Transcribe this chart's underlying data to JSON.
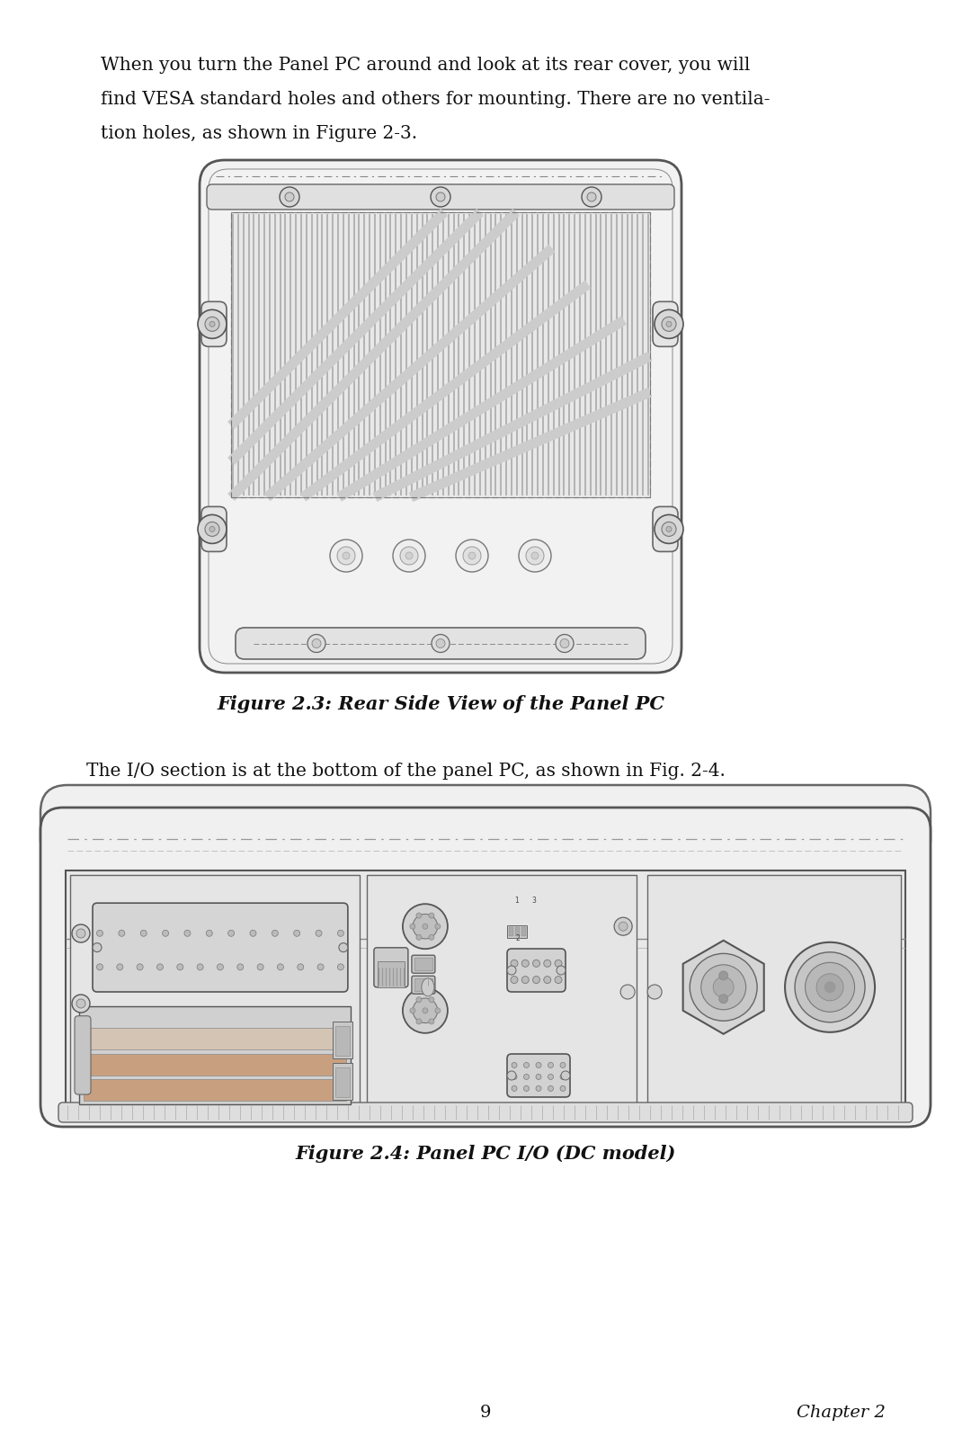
{
  "bg_color": "#ffffff",
  "text_color": "#111111",
  "para1_line1": "When you turn the Panel PC around and look at its rear cover, you will",
  "para1_line2": "find VESA standard holes and others for mounting. There are no ventila-",
  "para1_line3": "tion holes, as shown in Figure 2-3.",
  "fig1_caption": "Figure 2.3: Rear Side View of the Panel PC",
  "para2": "The I/O section is at the bottom of the panel PC, as shown in Fig. 2-4.",
  "fig2_caption": "Figure 2.4: Panel PC I/O (DC model)",
  "page_number": "9",
  "chapter": "Chapter 2"
}
